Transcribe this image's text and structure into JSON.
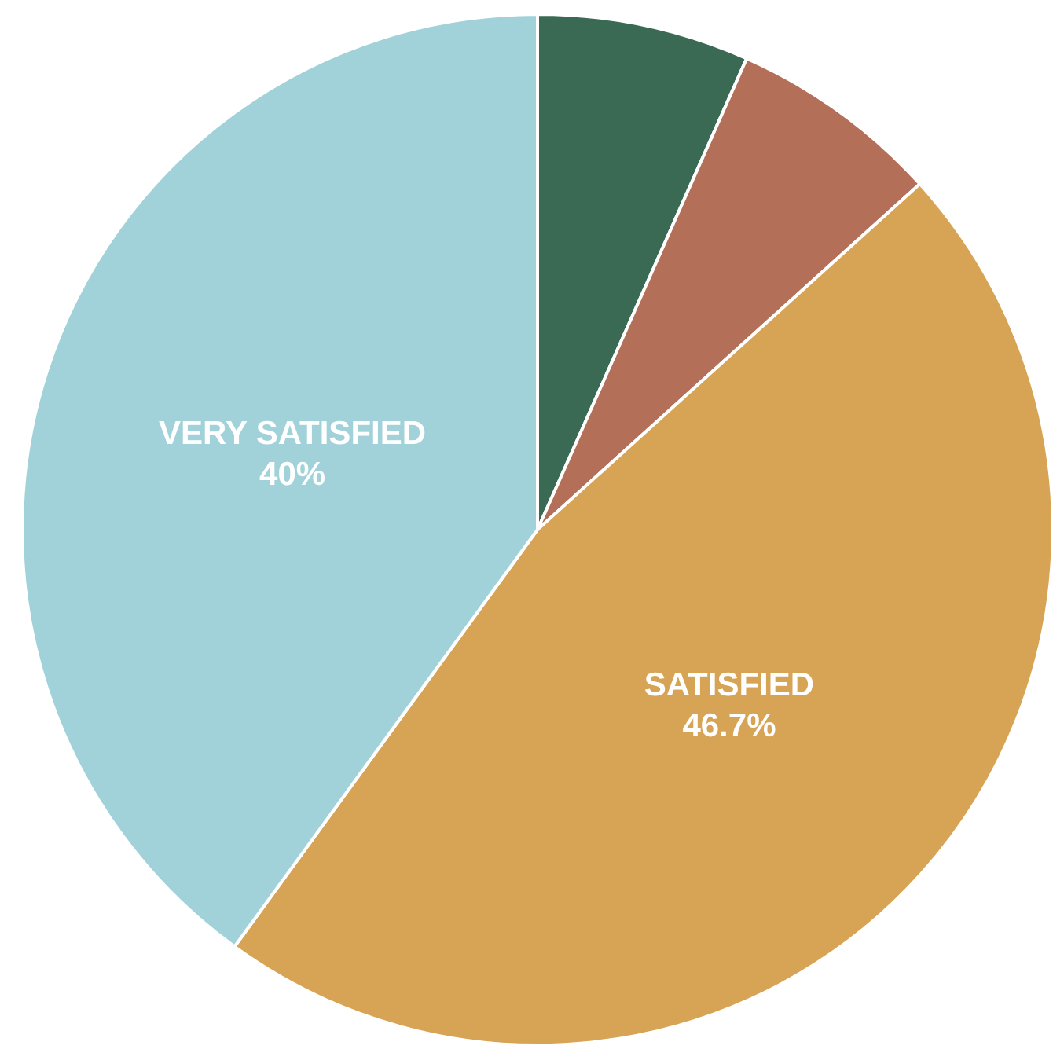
{
  "chart_data": {
    "type": "pie",
    "categories": [
      null,
      null,
      "SATISFIED",
      "VERY SATISFIED"
    ],
    "values": [
      6.65,
      6.65,
      46.7,
      40
    ],
    "colors": [
      "#3b6a54",
      "#b46f59",
      "#d7a354",
      "#a2d2d9"
    ],
    "value_labels": [
      null,
      null,
      "46.7%",
      "40%"
    ]
  }
}
